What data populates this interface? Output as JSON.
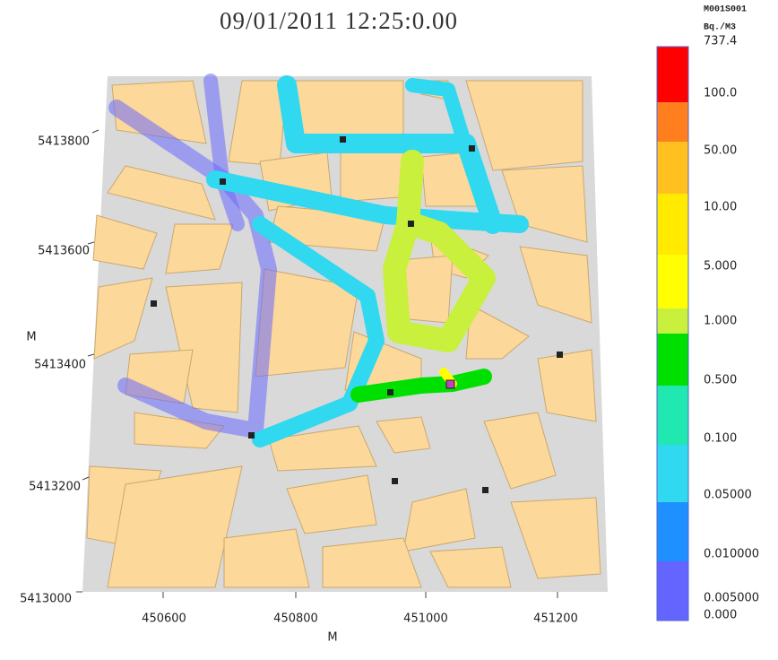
{
  "title": "09/01/2011 12:25:0.00",
  "legend": {
    "variable": "M001S001",
    "unit": "Bq./M3",
    "levels": [
      "737.4",
      "100.0",
      "50.00",
      "10.00",
      "5.000",
      "1.000",
      "0.500",
      "0.100",
      "0.05000",
      "0.010000",
      "0.005000",
      "0.000"
    ]
  },
  "x_axis": {
    "label": "M",
    "ticks": [
      "450600",
      "450800",
      "451000",
      "451200"
    ]
  },
  "y_axis": {
    "label": "M",
    "ticks": [
      "5413800",
      "5413600",
      "5413400",
      "5413200",
      "5413000"
    ]
  }
}
